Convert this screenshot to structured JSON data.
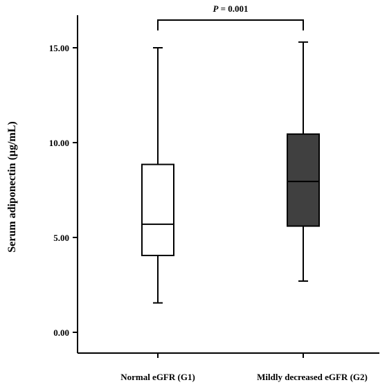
{
  "chart_data": {
    "type": "box",
    "ylabel": "Serum adiponectin (μg/mL)",
    "xlabel": "",
    "ylim": [
      -0.5,
      17.8
    ],
    "yticks": [
      0,
      5,
      10,
      15
    ],
    "ytick_labels": [
      "0.00",
      "5.00",
      "10.00",
      "15.00"
    ],
    "categories": [
      "Normal eGFR (G1)",
      "Mildly decreased eGFR (G2)"
    ],
    "boxes": [
      {
        "category": "Normal eGFR (G1)",
        "min": 1.55,
        "q1": 4.05,
        "median": 5.7,
        "q3": 8.85,
        "max": 15.0,
        "fill": "#ffffff"
      },
      {
        "category": "Mildly decreased eGFR (G2)",
        "min": 2.7,
        "q1": 5.6,
        "median": 7.95,
        "q3": 10.45,
        "max": 15.3,
        "fill": "#404040"
      }
    ],
    "annotation": {
      "label_italic": "P",
      "label_rest": " = 0.001"
    }
  }
}
